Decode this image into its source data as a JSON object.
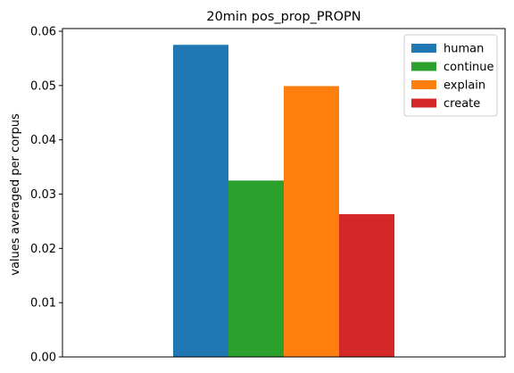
{
  "chart_data": {
    "type": "bar",
    "title": "20min pos_prop_PROPN",
    "xlabel": "",
    "ylabel": "values averaged per corpus",
    "categories": [
      ""
    ],
    "series": [
      {
        "name": "human",
        "values": [
          0.0575
        ],
        "color": "#1f77b4"
      },
      {
        "name": "continue",
        "values": [
          0.0325
        ],
        "color": "#2ca02c"
      },
      {
        "name": "explain",
        "values": [
          0.0499
        ],
        "color": "#ff7f0e"
      },
      {
        "name": "create",
        "values": [
          0.0263
        ],
        "color": "#d62728"
      }
    ],
    "ylim": [
      0,
      0.0605
    ],
    "yticks": [
      0.0,
      0.01,
      0.02,
      0.03,
      0.04,
      0.05,
      0.06
    ],
    "ytick_labels": [
      "0.00",
      "0.01",
      "0.02",
      "0.03",
      "0.04",
      "0.05",
      "0.06"
    ],
    "grid": false,
    "legend_position": "top-right"
  }
}
